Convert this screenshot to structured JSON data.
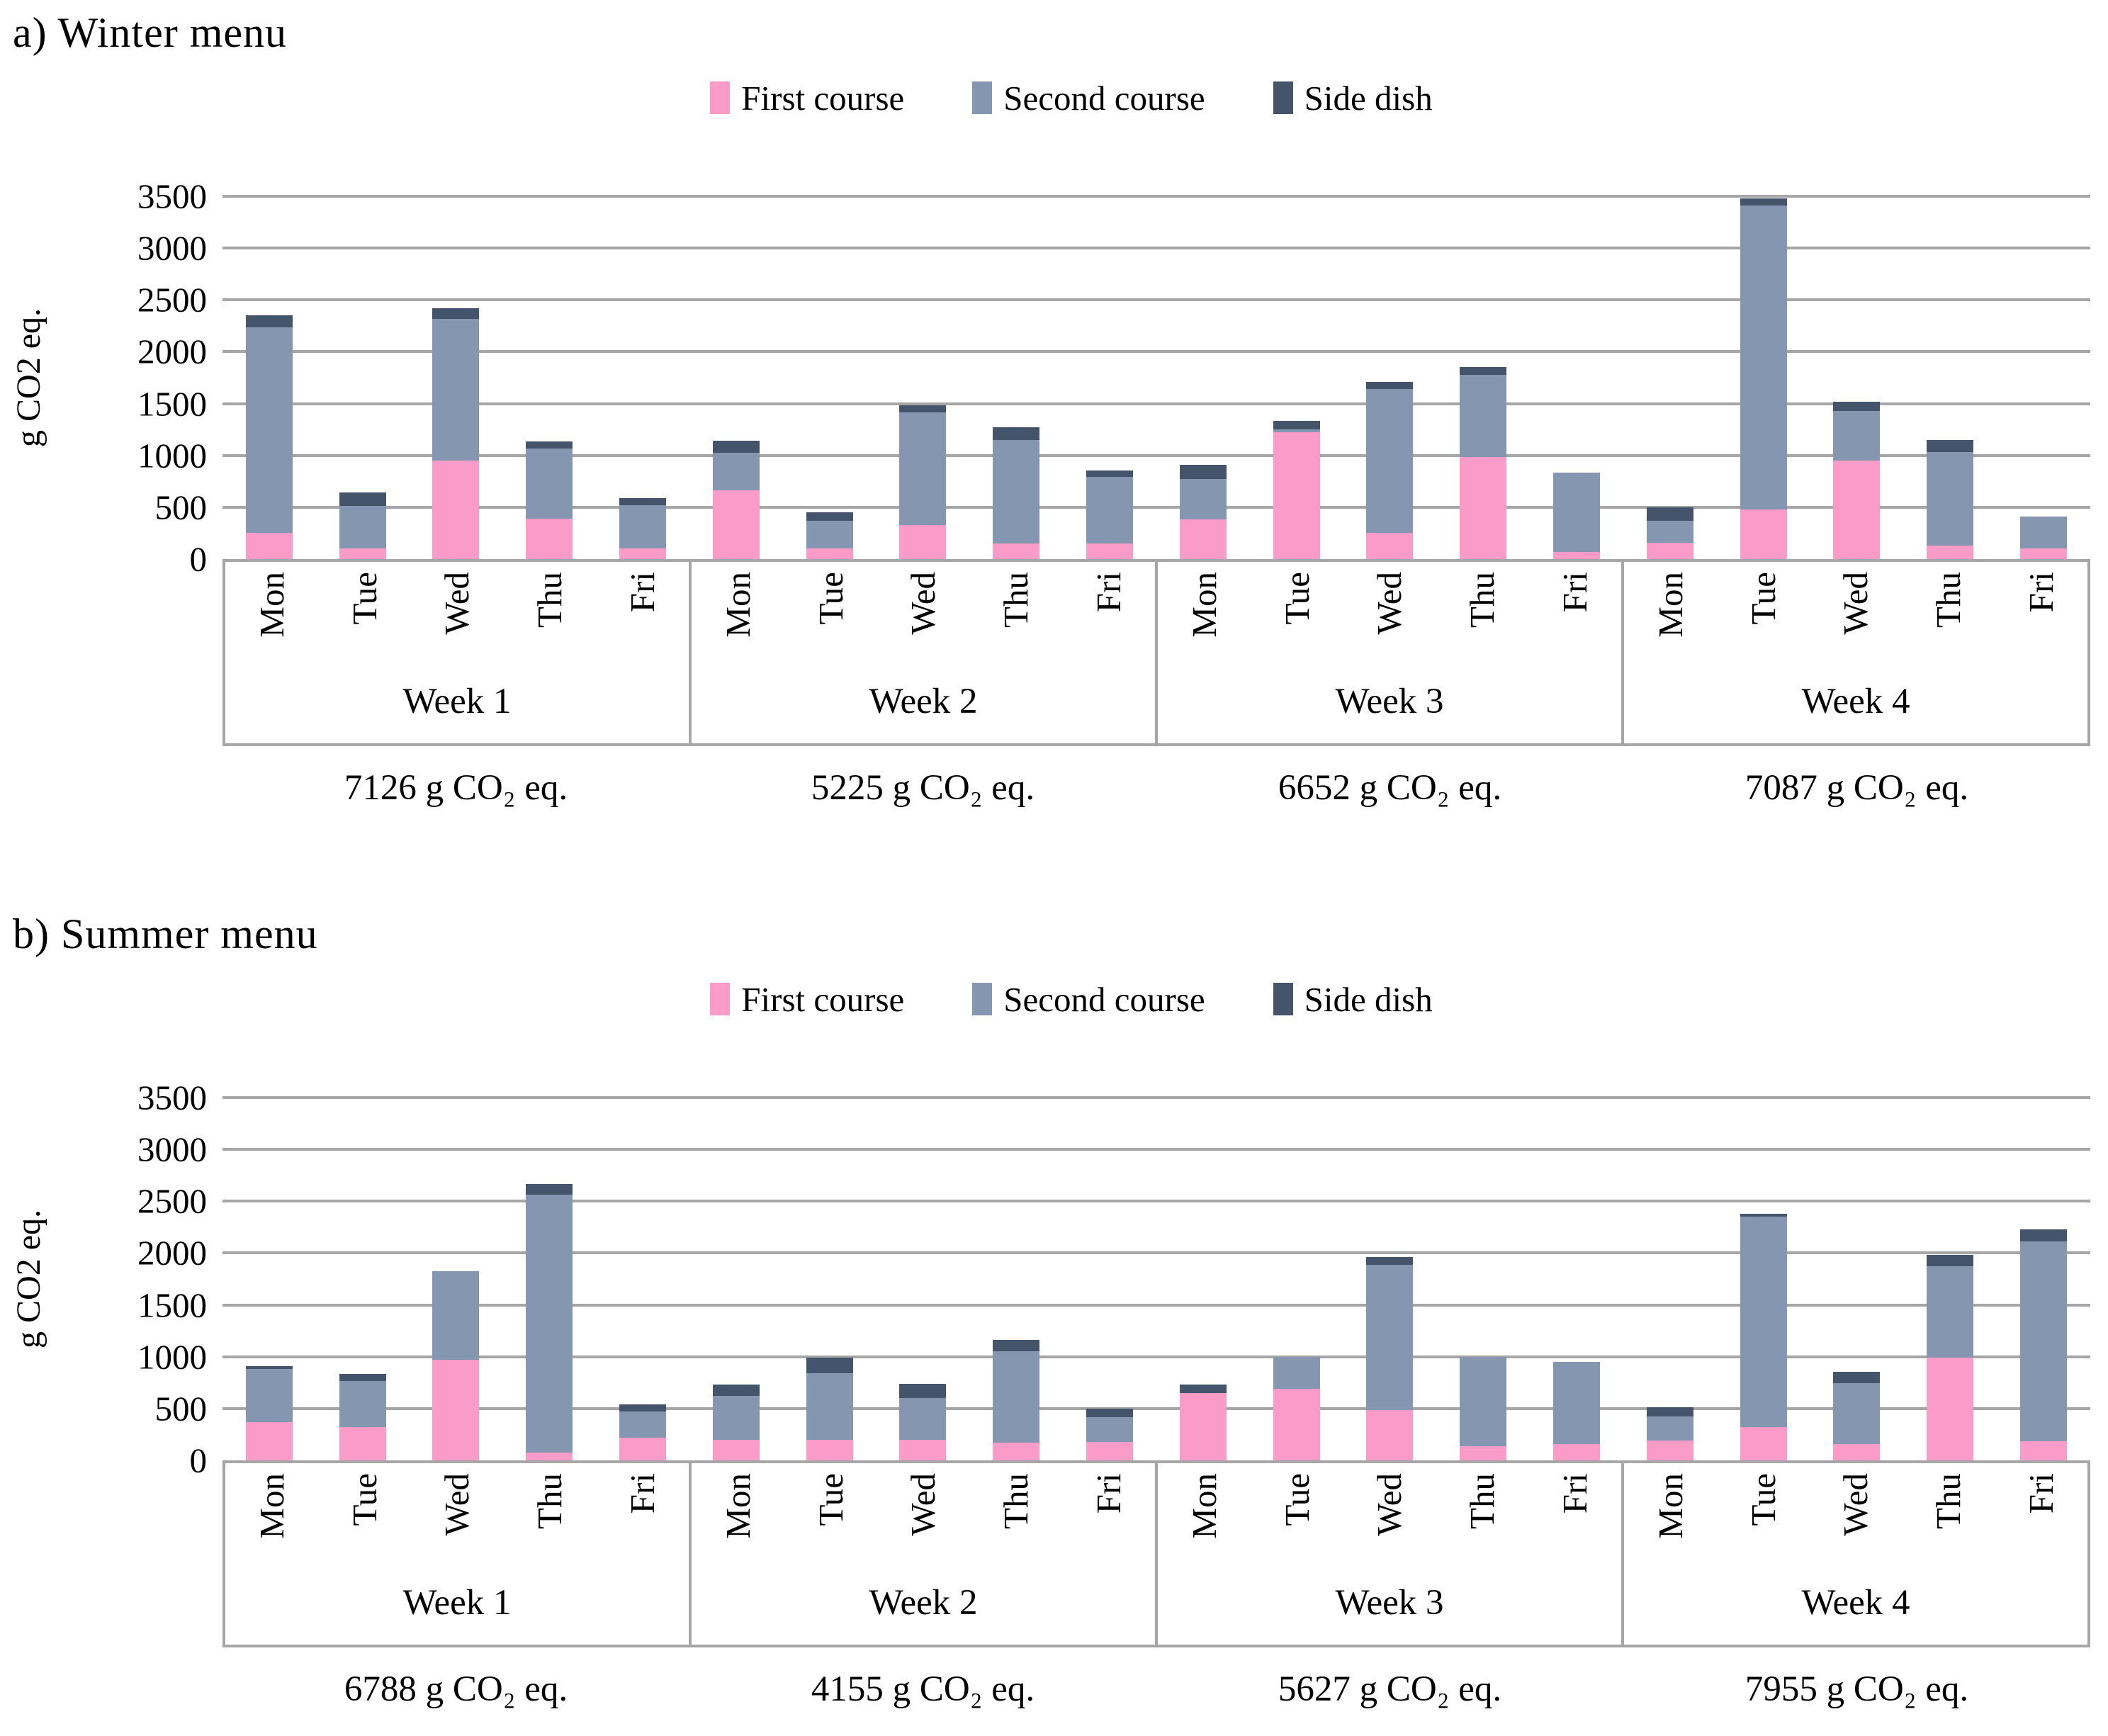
{
  "colors": {
    "first_course": "#FA9BC8",
    "second_course": "#8496B0",
    "side_dish": "#44546A",
    "gridline": "#A6A6A6",
    "axis_frame": "#A6A6A6"
  },
  "series_keys": [
    "first_course",
    "second_course",
    "side_dish"
  ],
  "chart_data": [
    {
      "type": "bar",
      "stacked": true,
      "title": "a) Winter menu",
      "ylabel": "g CO2 eq.",
      "ylim": [
        0,
        3500
      ],
      "yticks": [
        0,
        500,
        1000,
        1500,
        2000,
        2500,
        3000,
        3500
      ],
      "grid": true,
      "legend": [
        "First course",
        "Second course",
        "Side dish"
      ],
      "legend_position": "top-center",
      "days": [
        "Mon",
        "Tue",
        "Wed",
        "Thu",
        "Fri"
      ],
      "weeks": [
        {
          "label": "Week 1",
          "total_label": "7126 g CO₂ eq.",
          "first_course": [
            250,
            100,
            950,
            390,
            100
          ],
          "second_course": [
            1985,
            410,
            1370,
            675,
            415
          ],
          "side_dish": [
            115,
            130,
            100,
            65,
            65
          ]
        },
        {
          "label": "Week 2",
          "total_label": "5225 g CO₂ eq.",
          "first_course": [
            660,
            100,
            330,
            150,
            150
          ],
          "second_course": [
            365,
            270,
            1090,
            1000,
            645
          ],
          "side_dish": [
            115,
            80,
            70,
            120,
            60
          ]
        },
        {
          "label": "Week 3",
          "total_label": "6652 g CO₂ eq.",
          "first_course": [
            380,
            1225,
            250,
            985,
            70
          ],
          "second_course": [
            390,
            25,
            1385,
            790,
            765
          ],
          "side_dish": [
            140,
            80,
            70,
            75,
            0
          ]
        },
        {
          "label": "Week 4",
          "total_label": "7087 g CO₂ eq.",
          "first_course": [
            160,
            480,
            950,
            130,
            100
          ],
          "second_course": [
            215,
            2930,
            480,
            900,
            310
          ],
          "side_dish": [
            130,
            70,
            90,
            115,
            0
          ]
        }
      ]
    },
    {
      "type": "bar",
      "stacked": true,
      "title": "b) Summer menu",
      "ylabel": "g CO2 eq.",
      "ylim": [
        0,
        3500
      ],
      "yticks": [
        0,
        500,
        1000,
        1500,
        2000,
        2500,
        3000,
        3500
      ],
      "grid": true,
      "legend": [
        "First course",
        "Second course",
        "Side dish"
      ],
      "legend_position": "top-center",
      "days": [
        "Mon",
        "Tue",
        "Wed",
        "Thu",
        "Fri"
      ],
      "weeks": [
        {
          "label": "Week 1",
          "total_label": "6788 g CO₂ eq.",
          "first_course": [
            370,
            320,
            970,
            75,
            220
          ],
          "second_course": [
            510,
            445,
            855,
            2485,
            250
          ],
          "side_dish": [
            30,
            65,
            0,
            105,
            70
          ]
        },
        {
          "label": "Week 2",
          "total_label": "4155 g CO₂ eq.",
          "first_course": [
            195,
            200,
            195,
            170,
            175
          ],
          "second_course": [
            425,
            645,
            405,
            880,
            240
          ],
          "side_dish": [
            110,
            150,
            140,
            110,
            85
          ]
        },
        {
          "label": "Week 3",
          "total_label": "5627 g CO₂ eq.",
          "first_course": [
            650,
            690,
            485,
            135,
            160
          ],
          "second_course": [
            0,
            305,
            1400,
            860,
            790
          ],
          "side_dish": [
            80,
            0,
            75,
            0,
            0
          ]
        },
        {
          "label": "Week 4",
          "total_label": "7955 g CO₂ eq.",
          "first_course": [
            190,
            320,
            160,
            990,
            185
          ],
          "second_course": [
            230,
            2030,
            585,
            885,
            1925
          ],
          "side_dish": [
            90,
            30,
            110,
            110,
            115
          ]
        }
      ]
    }
  ]
}
